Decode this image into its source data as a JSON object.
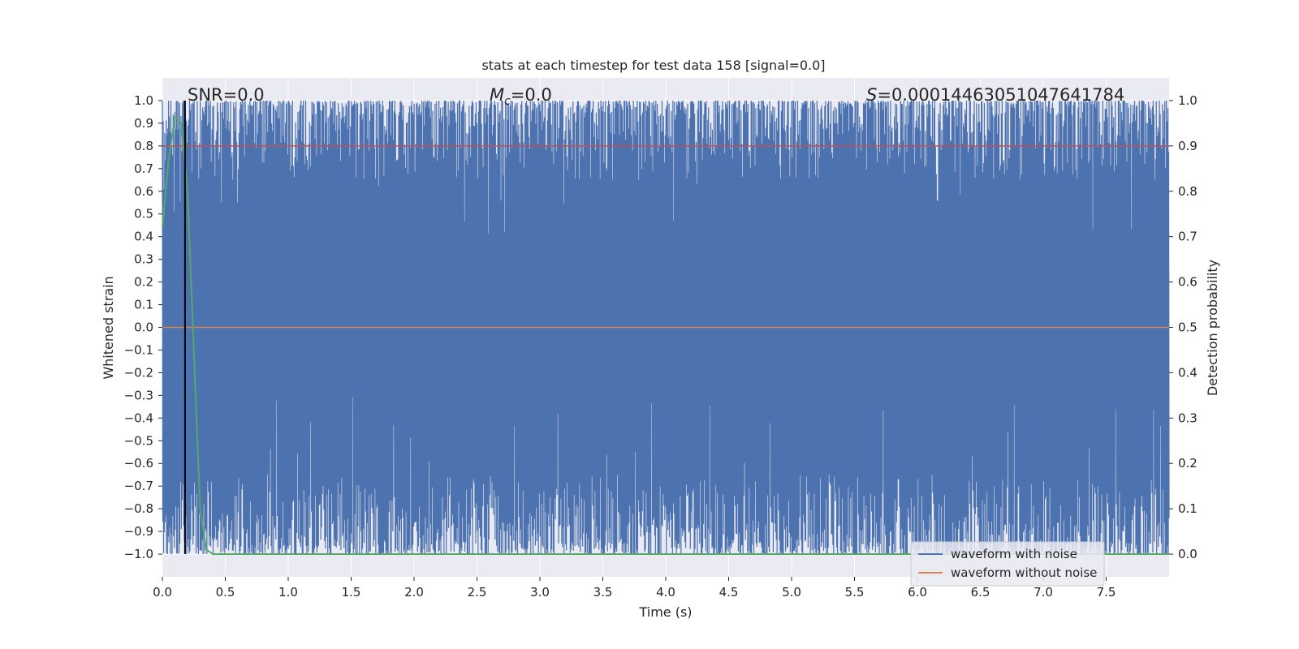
{
  "chart_data": {
    "type": "line",
    "title": "stats at each timestep for test data 158 [signal=0.0]",
    "xlabel": "Time (s)",
    "ylabel": "Whitened strain",
    "ylabel_right": "Detection probability",
    "xlim": [
      0.0,
      8.0
    ],
    "ylim": [
      -1.1,
      1.1
    ],
    "ylim_right": [
      -0.05,
      1.05
    ],
    "x_ticks": [
      "0.0",
      "0.5",
      "1.0",
      "1.5",
      "2.0",
      "2.5",
      "3.0",
      "3.5",
      "4.0",
      "4.5",
      "5.0",
      "5.5",
      "6.0",
      "6.5",
      "7.0",
      "7.5"
    ],
    "y_ticks": [
      "1.0",
      "0.9",
      "0.8",
      "0.7",
      "0.6",
      "0.5",
      "0.4",
      "0.3",
      "0.2",
      "0.1",
      "0.0",
      "−0.1",
      "−0.2",
      "−0.3",
      "−0.4",
      "−0.5",
      "−0.6",
      "−0.7",
      "−0.8",
      "−0.9",
      "−1.0"
    ],
    "y_right_ticks": [
      "1.0",
      "0.9",
      "0.8",
      "0.7",
      "0.6",
      "0.5",
      "0.4",
      "0.3",
      "0.2",
      "0.1",
      "0.0"
    ],
    "grid": true,
    "background": "#eaeaf2",
    "annotations": {
      "snr": "SNR=0.0",
      "mc": "M",
      "mc_sub": "c",
      "mc_value": "=0.0",
      "s": "S",
      "s_value": "=0.0001446305104764178​4"
    },
    "legend": {
      "placement": "lower-right",
      "entries": [
        {
          "label": "waveform with noise",
          "color": "#4c72b0"
        },
        {
          "label": "waveform without noise",
          "color": "#dd8452"
        }
      ]
    },
    "series": [
      {
        "name": "waveform with noise",
        "color": "#4c72b0",
        "kind": "noise",
        "range": [
          -1.0,
          1.0
        ],
        "x_range": [
          0.0,
          8.0
        ]
      },
      {
        "name": "waveform without noise",
        "color": "#dd8452",
        "x": [
          0.0,
          8.0
        ],
        "y": [
          0.0,
          0.0
        ]
      },
      {
        "color": "#55a868",
        "axis": "right",
        "x": [
          0.0,
          0.05,
          0.1,
          0.15,
          0.2,
          0.25,
          0.3,
          0.35,
          0.4,
          8.0
        ],
        "y": [
          0.72,
          0.87,
          0.965,
          0.95,
          0.8,
          0.45,
          0.1,
          0.01,
          0.0,
          0.0
        ]
      },
      {
        "color": "#c44e52",
        "axis": "right",
        "x": [
          0.0,
          8.0
        ],
        "y": [
          0.9,
          0.9
        ]
      }
    ],
    "vline": {
      "x": 0.18,
      "color": "#000000"
    }
  }
}
